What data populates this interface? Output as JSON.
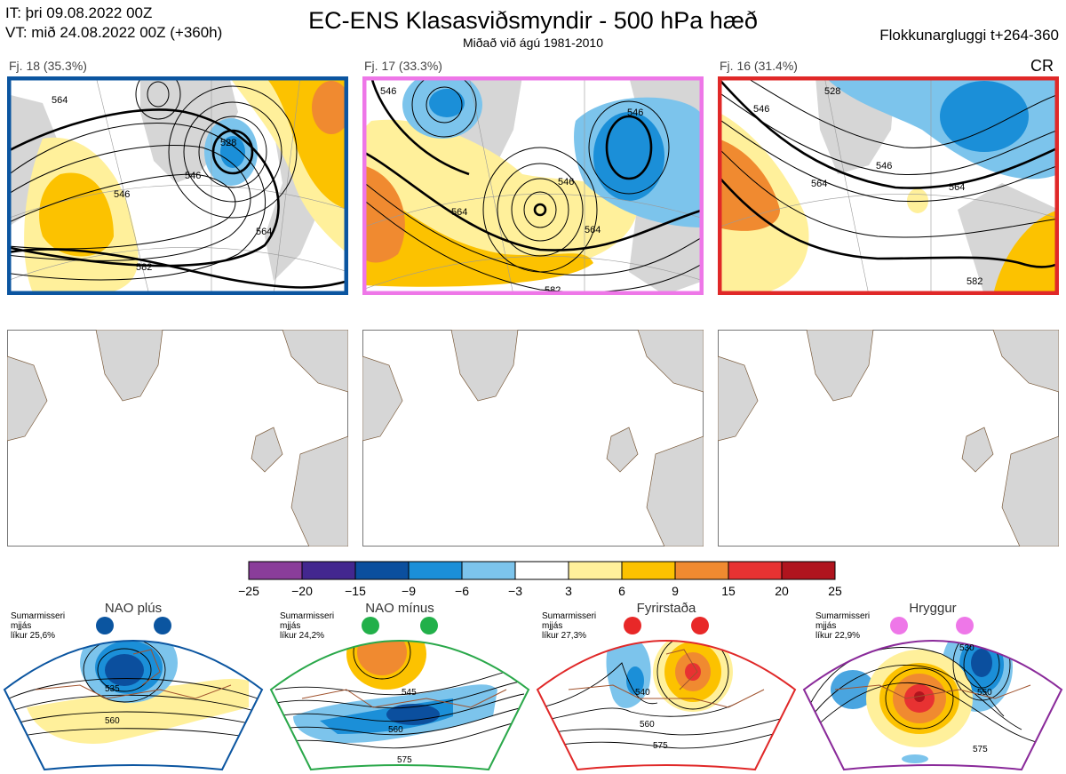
{
  "header": {
    "it_line": "IT: þri 09.08.2022 00Z",
    "vt_line": "VT: mið 24.08.2022 00Z  (+360h)",
    "title": "EC-ENS Klasasviðsmyndir - 500 hPa hæð",
    "subtitle": "Miðað við ágú 1981-2010",
    "window": "Flokkunargluggi t+264-360"
  },
  "clusters": [
    {
      "label": "Fj. 18 (35.3%)",
      "border_color": "#0b55a0",
      "contours": [
        "564",
        "546",
        "528",
        "564",
        "582",
        "546"
      ]
    },
    {
      "label": "Fj. 17 (33.3%)",
      "border_color": "#ee77e8",
      "contours": [
        "546",
        "564",
        "546",
        "546",
        "564",
        "582"
      ]
    },
    {
      "label": "Fj. 16 (31.4%)",
      "border_color": "#e02828",
      "contours": [
        "546",
        "528",
        "546",
        "564",
        "564",
        "582"
      ],
      "tag": "CR"
    }
  ],
  "colorbar": {
    "ticks": [
      "−25",
      "−20",
      "−15",
      "−9",
      "−6",
      "−3",
      "3",
      "6",
      "9",
      "15",
      "20",
      "25"
    ],
    "colors": [
      "#8a3d9a",
      "#43278f",
      "#0b4f9e",
      "#1b8fd8",
      "#7cc4ec",
      "#ffffff",
      "#fff09b",
      "#fcc200",
      "#f08a30",
      "#e83232",
      "#b0141e"
    ]
  },
  "regimes": [
    {
      "name": "NAO plús",
      "info": [
        "Sumarmisseri",
        "mjjás",
        "líkur 25,6%"
      ],
      "border": "#0b55a0",
      "dot": "#0b55a0",
      "contours": [
        "535",
        "560"
      ]
    },
    {
      "name": "NAO mínus",
      "info": [
        "Sumarmisseri",
        "mjjás",
        "líkur 24,2%"
      ],
      "border": "#2aa84a",
      "dot": "#22b04a",
      "contours": [
        "545",
        "560",
        "575"
      ]
    },
    {
      "name": "Fyrirstaða",
      "info": [
        "Sumarmisseri",
        "mjjás",
        "líkur 27,3%"
      ],
      "border": "#e02828",
      "dot": "#e82828",
      "contours": [
        "540",
        "560",
        "575"
      ]
    },
    {
      "name": "Hryggur",
      "info": [
        "Sumarmisseri",
        "mjjás",
        "líkur 22,9%"
      ],
      "border": "#8a2a9a",
      "dot": "#ee77e8",
      "contours": [
        "530",
        "550",
        "575"
      ]
    }
  ]
}
